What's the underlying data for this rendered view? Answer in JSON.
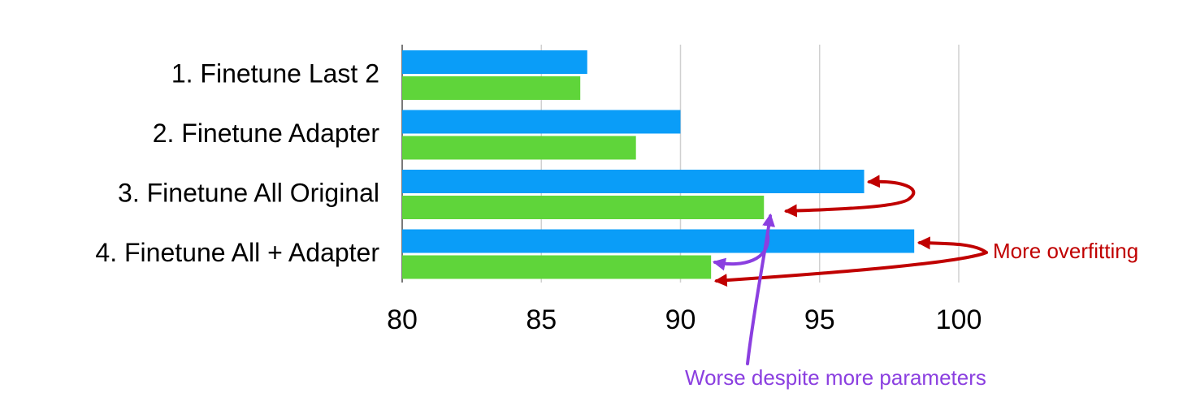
{
  "chart_data": {
    "type": "barh",
    "categories": [
      "1. Finetune Last 2",
      "2. Finetune Adapter",
      "3. Finetune All Original",
      "4. Finetune All + Adapter"
    ],
    "series": [
      {
        "color": "#0a9df8",
        "values": [
          86.65,
          90.0,
          96.6,
          98.4
        ]
      },
      {
        "color": "#5fd53a",
        "values": [
          86.4,
          88.4,
          93.0,
          91.1
        ]
      }
    ],
    "xlim": [
      80,
      100
    ],
    "xticks": [
      80,
      85,
      90,
      95,
      100
    ],
    "grid": true,
    "annotations": [
      {
        "text": "More overfitting",
        "color": "#c00000"
      },
      {
        "text": "Worse despite more parameters",
        "color": "#8b3fe0"
      }
    ]
  }
}
